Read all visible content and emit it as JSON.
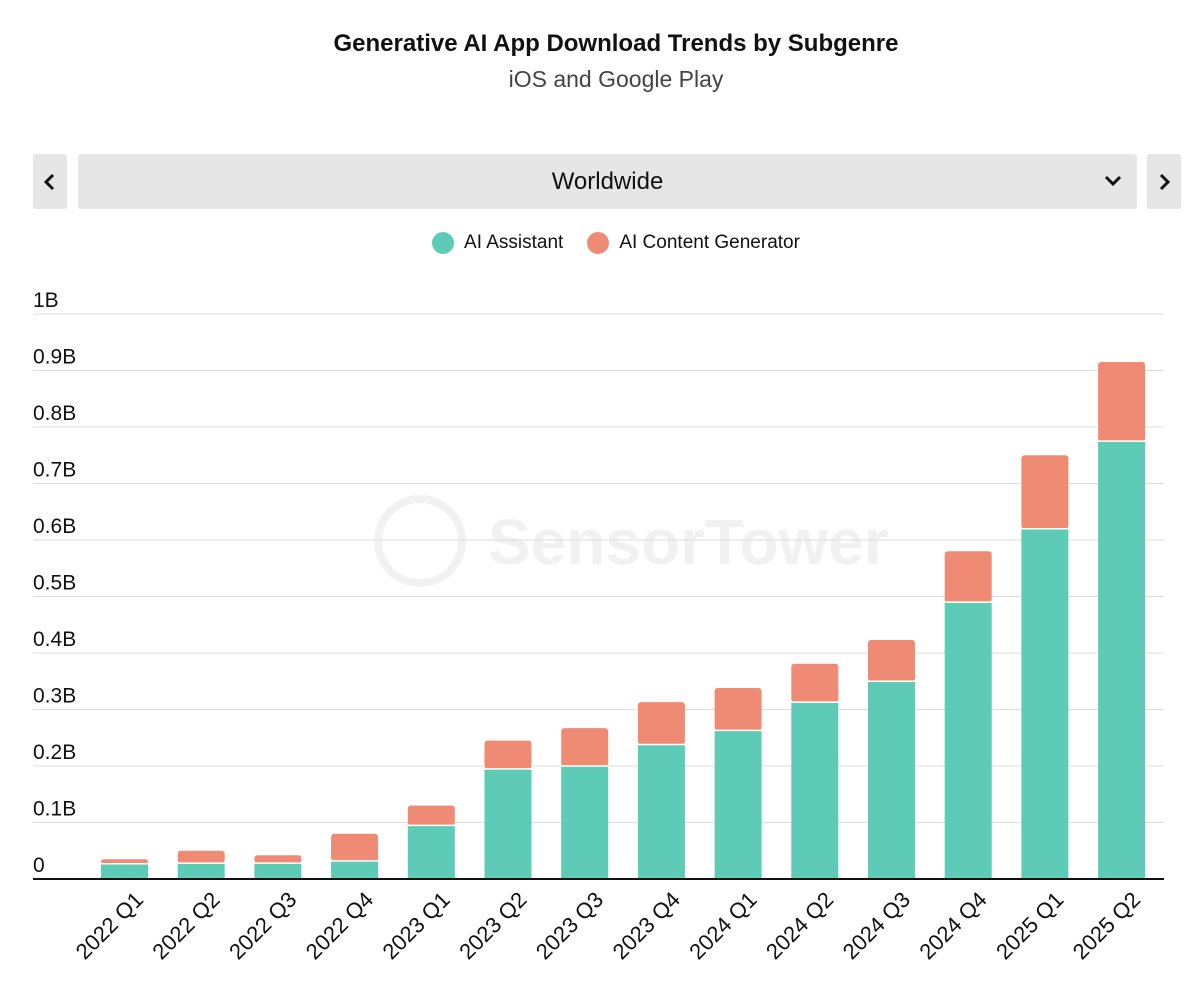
{
  "header": {
    "title": "Generative AI App Download Trends by Subgenre",
    "subtitle": "iOS and Google Play"
  },
  "region_selector": {
    "selected": "Worldwide",
    "prev_icon": "chevron-left-icon",
    "next_icon": "chevron-right-icon",
    "dropdown_icon": "chevron-down-icon"
  },
  "watermark": "SensorTower",
  "colors": {
    "ai_assistant": "#5ecbb6",
    "ai_content_generator": "#ef8b75",
    "grid": "#dddddd",
    "axis": "#111111"
  },
  "chart_data": {
    "type": "bar",
    "stacked": true,
    "categories": [
      "2022 Q1",
      "2022 Q2",
      "2022 Q3",
      "2022 Q4",
      "2023 Q1",
      "2023 Q2",
      "2023 Q3",
      "2023 Q4",
      "2024 Q1",
      "2024 Q2",
      "2024 Q3",
      "2024 Q4",
      "2025 Q1",
      "2025 Q2"
    ],
    "series": [
      {
        "name": "AI Assistant",
        "color": "#5ecbb6",
        "values": [
          0.027,
          0.028,
          0.028,
          0.032,
          0.095,
          0.195,
          0.2,
          0.238,
          0.263,
          0.313,
          0.35,
          0.49,
          0.62,
          0.775
        ]
      },
      {
        "name": "AI Content Generator",
        "color": "#ef8b75",
        "values": [
          0.008,
          0.022,
          0.014,
          0.048,
          0.035,
          0.05,
          0.067,
          0.075,
          0.075,
          0.068,
          0.073,
          0.09,
          0.13,
          0.14
        ]
      }
    ],
    "yticks": [
      "0",
      "0.1B",
      "0.2B",
      "0.3B",
      "0.4B",
      "0.5B",
      "0.6B",
      "0.7B",
      "0.8B",
      "0.9B",
      "1B"
    ],
    "ylim": [
      0,
      1
    ],
    "unit": "B",
    "grid": true,
    "legend": "top-center"
  }
}
